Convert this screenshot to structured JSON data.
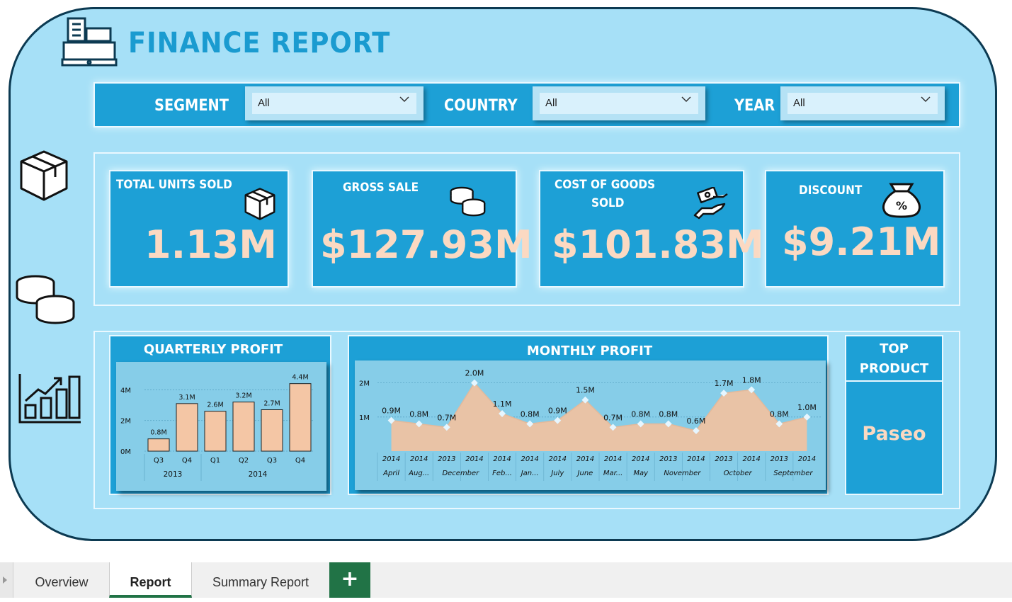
{
  "report": {
    "title": "FINANCE REPORT"
  },
  "filters": [
    {
      "label": "SEGMENT",
      "value": "All"
    },
    {
      "label": "COUNTRY",
      "value": "All"
    },
    {
      "label": "YEAR",
      "value": "All"
    }
  ],
  "kpis": [
    {
      "title": "TOTAL UNITS SOLD",
      "value": "1.13M",
      "icon": "package-box-icon"
    },
    {
      "title": "GROSS SALE",
      "value": "$127.93M",
      "icon": "coins-icon"
    },
    {
      "title_line1": "COST OF GOODS",
      "title_line2": "SOLD",
      "value": "$101.83M",
      "icon": "money-hand-icon"
    },
    {
      "title": "DISCOUNT",
      "value": "$9.21M",
      "icon": "money-bag-percent-icon"
    }
  ],
  "side_icons": [
    "package-box-icon",
    "coins-stack-icon",
    "growth-chart-icon"
  ],
  "quarterly_profit": {
    "title": "QUARTERLY PROFIT",
    "yticks": [
      "4M",
      "2M",
      "0M"
    ],
    "years": [
      "2013",
      "2014"
    ],
    "chart_data": {
      "type": "bar",
      "categories": [
        "Q3 2013",
        "Q4 2013",
        "Q1 2014",
        "Q2 2014",
        "Q3 2014",
        "Q4 2014"
      ],
      "tick_labels": [
        "Q3",
        "Q4",
        "Q1",
        "Q2",
        "Q3",
        "Q4"
      ],
      "values": [
        0.8,
        3.1,
        2.6,
        3.2,
        2.7,
        4.4
      ],
      "value_labels": [
        "0.8M",
        "3.1M",
        "2.6M",
        "3.2M",
        "2.7M",
        "4.4M"
      ],
      "ylim": [
        0,
        4.8
      ],
      "color": "#f4c6a5"
    }
  },
  "monthly_profit": {
    "title": "MONTHLY PROFIT",
    "yticks": [
      "2M",
      "1M"
    ],
    "chart_data": {
      "type": "area",
      "years": [
        "2014",
        "2014",
        "2013",
        "2014",
        "2014",
        "2014",
        "2014",
        "2014",
        "2014",
        "2014",
        "2013",
        "2014",
        "2013",
        "2014",
        "2013",
        "2014"
      ],
      "months": [
        "April",
        "Aug...",
        "December",
        "",
        "Feb...",
        "Jan...",
        "July",
        "June",
        "Mar...",
        "May",
        "November",
        "",
        "October",
        "",
        "September",
        ""
      ],
      "values": [
        0.9,
        0.8,
        0.7,
        2.0,
        1.1,
        0.8,
        0.9,
        1.5,
        0.7,
        0.8,
        0.8,
        0.6,
        1.7,
        1.8,
        0.8,
        1.0
      ],
      "value_labels": [
        "0.9M",
        "0.8M",
        "0.7M",
        "2.0M",
        "1.1M",
        "0.8M",
        "0.9M",
        "1.5M",
        "0.7M",
        "0.8M",
        "0.8M",
        "0.6M",
        "1.7M",
        "1.8M",
        "0.8M",
        "1.0M"
      ],
      "ylim": [
        0,
        2.2
      ],
      "color": "#e9c3a6"
    }
  },
  "top_product": {
    "title_line1": "TOP",
    "title_line2": "PRODUCT",
    "value": "Paseo"
  },
  "tabs": {
    "overview": "Overview",
    "report": "Report",
    "summary": "Summary Report",
    "add": "+"
  },
  "colors": {
    "accent": "#1da0d6",
    "background": "#a6e0f7",
    "value": "#fbd9c2",
    "tab_green": "#217346"
  }
}
